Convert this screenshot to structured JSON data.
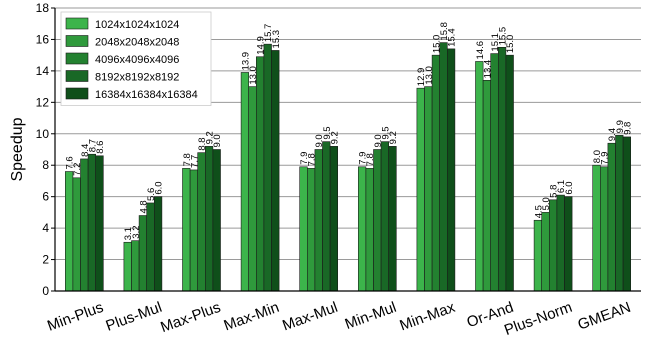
{
  "chart_data": {
    "type": "bar",
    "title": "",
    "xlabel": "",
    "ylabel": "Speedup",
    "ylim": [
      0,
      18
    ],
    "yticks": [
      0,
      2,
      4,
      6,
      8,
      10,
      12,
      14,
      16,
      18
    ],
    "grid": "horizontal",
    "legend_position": "top-left",
    "categories": [
      "Min-Plus",
      "Plus-Mul",
      "Max-Plus",
      "Max-Min",
      "Max-Mul",
      "Min-Mul",
      "Min-Max",
      "Or-And",
      "Plus-Norm",
      "GMEAN"
    ],
    "series": [
      {
        "name": "1024x1024x1024",
        "color": "#3cb44b",
        "values": [
          7.6,
          3.1,
          7.8,
          13.9,
          7.9,
          7.9,
          12.9,
          14.6,
          4.5,
          8.0
        ]
      },
      {
        "name": "2048x2048x2048",
        "color": "#2f9a3c",
        "values": [
          7.2,
          3.2,
          7.7,
          13.0,
          7.8,
          7.8,
          13.0,
          13.4,
          5.0,
          7.9
        ]
      },
      {
        "name": "4096x4096x4096",
        "color": "#238130",
        "values": [
          8.4,
          4.8,
          8.8,
          14.9,
          9.0,
          9.0,
          15.0,
          15.1,
          5.8,
          9.4
        ]
      },
      {
        "name": "8192x8192x8192",
        "color": "#196826",
        "values": [
          8.7,
          5.6,
          9.2,
          15.7,
          9.5,
          9.5,
          15.8,
          15.5,
          6.1,
          9.9
        ]
      },
      {
        "name": "16384x16384x16384",
        "color": "#0f4f1a",
        "values": [
          8.6,
          6.0,
          9.0,
          15.3,
          9.2,
          9.2,
          15.4,
          15.0,
          6.0,
          9.8
        ]
      }
    ]
  }
}
